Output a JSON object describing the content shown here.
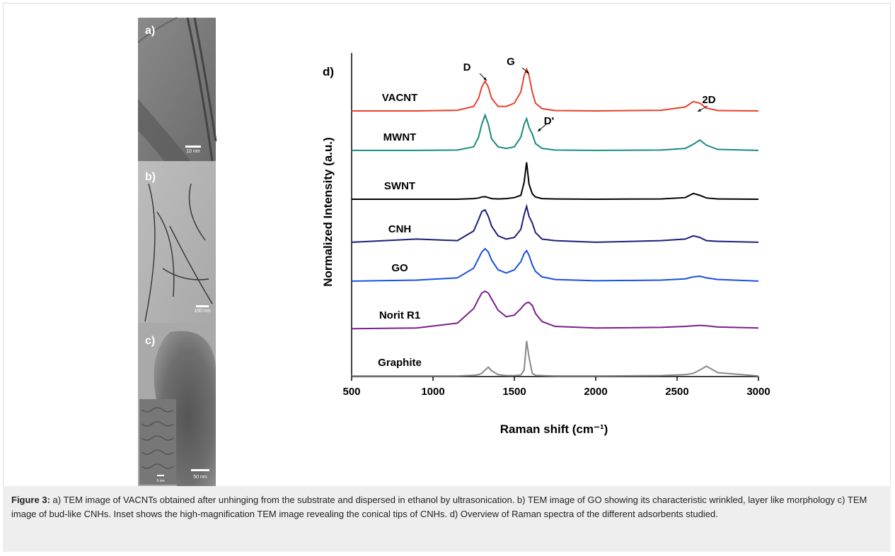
{
  "panels": [
    {
      "label": "a)",
      "scale_bar": "10 nm"
    },
    {
      "label": "b)",
      "scale_bar": "100 nm"
    },
    {
      "label": "c)",
      "scale_bar": "50 nm",
      "inset_scale_bar": "5 nm"
    }
  ],
  "chart_data": {
    "type": "line",
    "panel_label": "d)",
    "xlabel": "Raman shift (cm⁻¹)",
    "ylabel": "Normalized Intensity (a.u.)",
    "xlim": [
      500,
      3000
    ],
    "xticks": [
      500,
      1000,
      1500,
      2000,
      2500,
      3000
    ],
    "ylim": [
      0,
      10
    ],
    "annotations": [
      "D",
      "G",
      "D'",
      "2D"
    ],
    "x": [
      500,
      900,
      1150,
      1250,
      1280,
      1300,
      1320,
      1340,
      1360,
      1400,
      1450,
      1500,
      1540,
      1560,
      1575,
      1590,
      1610,
      1630,
      1670,
      1750,
      2000,
      2400,
      2550,
      2600,
      2640,
      2680,
      2750,
      3000
    ],
    "series": [
      {
        "name": "VACNT",
        "color": "#e8402a",
        "values": [
          8.21,
          8.21,
          8.23,
          8.35,
          8.6,
          8.95,
          9.13,
          8.95,
          8.6,
          8.35,
          8.35,
          8.45,
          8.8,
          9.3,
          9.5,
          9.3,
          8.8,
          8.45,
          8.28,
          8.22,
          8.21,
          8.23,
          8.33,
          8.5,
          8.45,
          8.3,
          8.22,
          8.21
        ]
      },
      {
        "name": "MWNT",
        "color": "#1a8a80",
        "values": [
          6.99,
          6.99,
          7.0,
          7.1,
          7.4,
          7.8,
          8.08,
          7.8,
          7.35,
          7.1,
          7.05,
          7.1,
          7.4,
          7.8,
          7.97,
          7.7,
          7.5,
          7.2,
          7.05,
          7.0,
          6.99,
          7.0,
          7.05,
          7.18,
          7.31,
          7.15,
          7.02,
          6.99
        ]
      },
      {
        "name": "SWNT",
        "color": "#000000",
        "values": [
          5.48,
          5.48,
          5.48,
          5.5,
          5.52,
          5.55,
          5.56,
          5.53,
          5.5,
          5.49,
          5.5,
          5.53,
          5.6,
          6.0,
          6.62,
          5.95,
          5.65,
          5.55,
          5.5,
          5.49,
          5.48,
          5.49,
          5.53,
          5.66,
          5.6,
          5.52,
          5.49,
          5.48
        ]
      },
      {
        "name": "CNH",
        "color": "#1a1f7a",
        "values": [
          4.15,
          4.25,
          4.2,
          4.5,
          4.85,
          5.1,
          5.15,
          4.95,
          4.65,
          4.35,
          4.25,
          4.3,
          4.55,
          5.0,
          5.26,
          4.95,
          4.75,
          4.45,
          4.25,
          4.2,
          4.15,
          4.2,
          4.25,
          4.35,
          4.3,
          4.2,
          4.18,
          4.15
        ]
      },
      {
        "name": "GO",
        "color": "#1a4fe0",
        "values": [
          2.95,
          2.98,
          3.05,
          3.35,
          3.65,
          3.85,
          3.95,
          3.85,
          3.6,
          3.3,
          3.2,
          3.3,
          3.55,
          3.8,
          3.89,
          3.75,
          3.45,
          3.25,
          3.08,
          3.0,
          2.96,
          2.98,
          3.02,
          3.08,
          3.1,
          3.05,
          3.0,
          2.95
        ]
      },
      {
        "name": "Norit R1",
        "color": "#7a1f8a",
        "values": [
          1.48,
          1.5,
          1.65,
          2.1,
          2.4,
          2.58,
          2.64,
          2.58,
          2.4,
          2.05,
          1.85,
          1.9,
          2.1,
          2.22,
          2.28,
          2.29,
          2.2,
          1.95,
          1.7,
          1.55,
          1.5,
          1.52,
          1.55,
          1.57,
          1.58,
          1.57,
          1.53,
          1.5
        ]
      },
      {
        "name": "Graphite",
        "color": "#888888",
        "values": [
          0.02,
          0.02,
          0.02,
          0.04,
          0.06,
          0.1,
          0.2,
          0.29,
          0.18,
          0.06,
          0.03,
          0.03,
          0.05,
          0.2,
          1.1,
          0.6,
          0.1,
          0.04,
          0.03,
          0.02,
          0.02,
          0.03,
          0.06,
          0.1,
          0.2,
          0.32,
          0.12,
          0.02
        ]
      }
    ]
  },
  "caption": {
    "label": "Figure 3:",
    "text": "a) TEM image of VACNTs obtained after unhinging from the substrate and dispersed in ethanol by ultrasonication. b) TEM image of GO showing its characteristic wrinkled, layer like morphology c) TEM image of bud-like CNHs. Inset shows the high-magnification TEM image revealing the conical tips of CNHs. d) Overview of Raman spectra of the different adsorbents studied."
  }
}
